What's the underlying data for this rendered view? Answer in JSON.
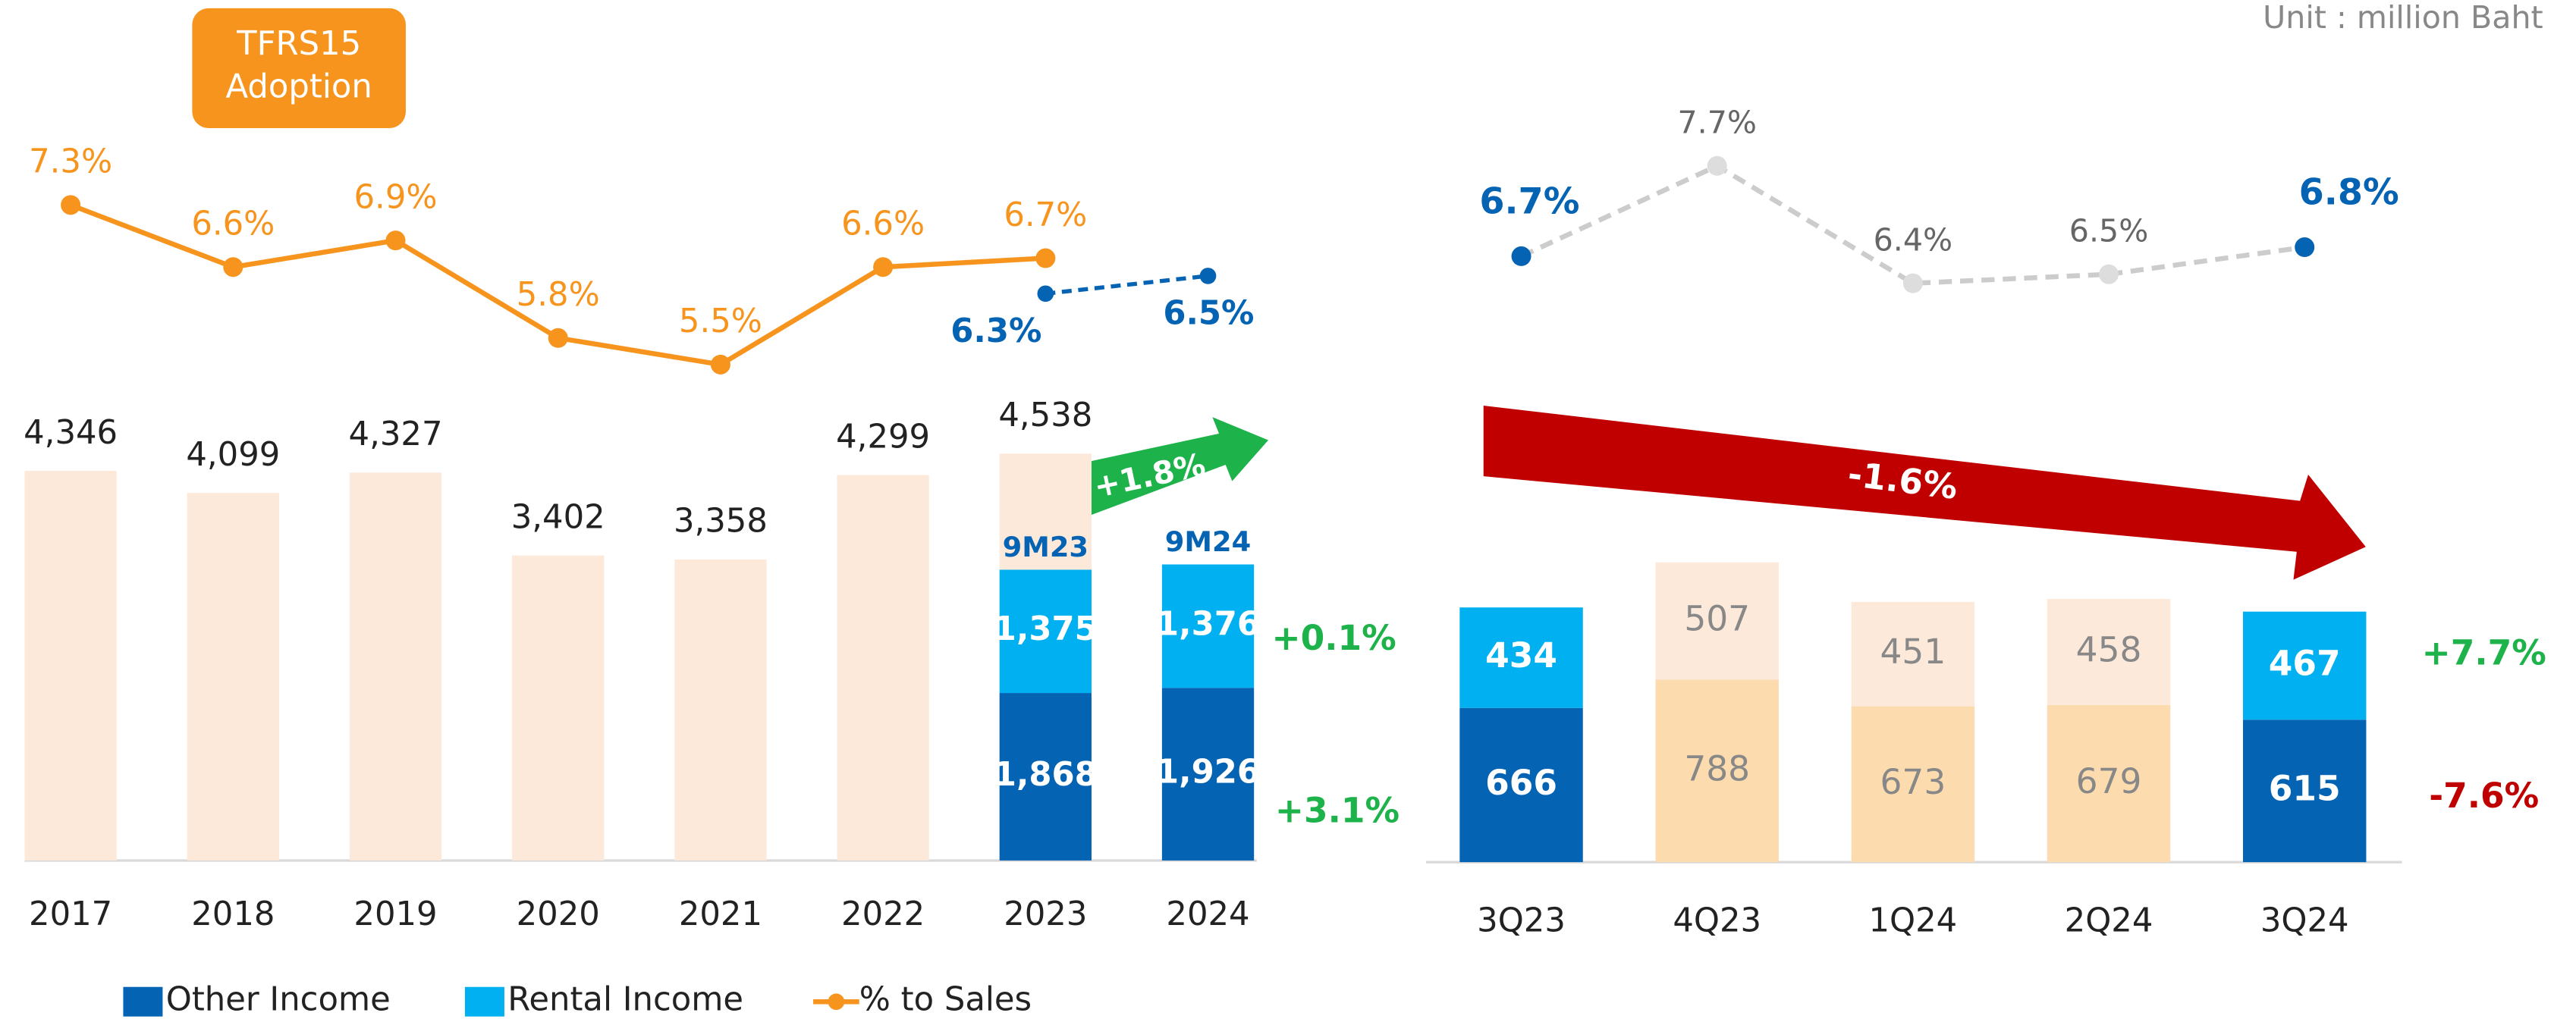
{
  "unit": "Unit : million Baht",
  "chart_data": [
    {
      "type": "bar",
      "categories": [
        "2017",
        "2018",
        "2019",
        "2020",
        "2021",
        "2022",
        "2023",
        "2024"
      ],
      "totals": [
        4346,
        4099,
        4327,
        3402,
        3358,
        4299,
        4538,
        null
      ],
      "total_labels": [
        "4,346",
        "4,099",
        "4,327",
        "3,402",
        "3,358",
        "4,299",
        "4,538",
        null
      ],
      "totals_color": "#fde9da",
      "period_labels": [
        null,
        null,
        null,
        null,
        null,
        null,
        "9M23",
        "9M24"
      ],
      "series": [
        {
          "name": "Other Income",
          "color": "#0563b4",
          "values": [
            null,
            null,
            null,
            null,
            null,
            null,
            1868,
            1926
          ],
          "value_labels": [
            null,
            null,
            null,
            null,
            null,
            null,
            "1,868",
            "1,926"
          ]
        },
        {
          "name": "Rental Income",
          "color": "#00b0f0",
          "values": [
            null,
            null,
            null,
            null,
            null,
            null,
            1375,
            1376
          ],
          "value_labels": [
            null,
            null,
            null,
            null,
            null,
            null,
            "1,375",
            "1,376"
          ]
        },
        {
          "name": "% to Sales",
          "type": "line",
          "color": "#f7941d",
          "values": [
            7.3,
            6.6,
            6.9,
            5.8,
            5.5,
            6.6,
            6.7,
            null
          ],
          "value_labels": [
            "7.3%",
            "6.6%",
            "6.9%",
            "5.8%",
            "5.5%",
            "6.6%",
            "6.7%",
            null
          ]
        }
      ],
      "nine_month_pct": {
        "color": "#0563b4",
        "values": [
          null,
          null,
          null,
          null,
          null,
          null,
          6.3,
          6.5
        ],
        "value_labels": [
          null,
          null,
          null,
          null,
          null,
          null,
          "6.3%",
          "6.5%"
        ]
      },
      "annotations": {
        "adoption": [
          "TFRS15",
          "Adoption"
        ],
        "total_change": "+1.8%",
        "rental_change": "+0.1%",
        "other_change": "+3.1%"
      }
    },
    {
      "type": "bar",
      "categories": [
        "3Q23",
        "4Q23",
        "1Q24",
        "2Q24",
        "3Q24"
      ],
      "highlight": [
        true,
        false,
        false,
        false,
        true
      ],
      "series": [
        {
          "name": "Other Income",
          "color": "#0563b4",
          "faded_color": "#fcdcae",
          "values": [
            666,
            788,
            673,
            679,
            615
          ]
        },
        {
          "name": "Rental Income",
          "color": "#00b0f0",
          "faded_color": "#fde9da",
          "values": [
            434,
            507,
            451,
            458,
            467
          ]
        },
        {
          "name": "% to Sales",
          "type": "line",
          "color": "#0563b4",
          "faded_color": "#cccccc",
          "values": [
            6.7,
            7.7,
            6.4,
            6.5,
            6.8
          ],
          "value_labels": [
            "6.7%",
            "7.7%",
            "6.4%",
            "6.5%",
            "6.8%"
          ]
        }
      ],
      "annotations": {
        "trend_change": "-1.6%",
        "rental_change": "+7.7%",
        "other_change": "-7.6%"
      }
    }
  ]
}
